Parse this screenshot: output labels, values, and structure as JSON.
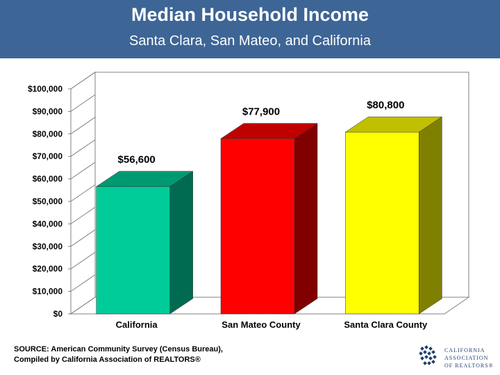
{
  "header": {
    "title": "Median Household Income",
    "subtitle": "Santa Clara, San Mateo, and California"
  },
  "chart_data": {
    "type": "bar",
    "title": "Median Household Income",
    "subtitle": "Santa Clara, San Mateo, and California",
    "categories": [
      "California",
      "San Mateo County",
      "Santa Clara County"
    ],
    "values": [
      56600,
      77900,
      80800
    ],
    "value_labels": [
      "$56,600",
      "$77,900",
      "$80,800"
    ],
    "yticks": [
      0,
      10000,
      20000,
      30000,
      40000,
      50000,
      60000,
      70000,
      80000,
      90000,
      100000
    ],
    "ytick_labels": [
      "$0",
      "$10,000",
      "$20,000",
      "$30,000",
      "$40,000",
      "$50,000",
      "$60,000",
      "$70,000",
      "$80,000",
      "$90,000",
      "$100,000"
    ],
    "ylim": [
      0,
      100000
    ],
    "xlabel": "",
    "ylabel": "",
    "colors": [
      {
        "front": "#00cc99",
        "side": "#006b50",
        "top": "#009a72"
      },
      {
        "front": "#ff0000",
        "side": "#800000",
        "top": "#c00000"
      },
      {
        "front": "#ffff00",
        "side": "#808000",
        "top": "#c0c000"
      }
    ]
  },
  "footer": {
    "source_line1": "SOURCE: American Community Survey (Census Bureau),",
    "source_line2": "Compiled by California Association of REALTORS®"
  },
  "logo": {
    "line1": "CALIFORNIA",
    "line2": "ASSOCIATION",
    "line3": "OF REALTORS®",
    "color": "#1f3f6e"
  }
}
